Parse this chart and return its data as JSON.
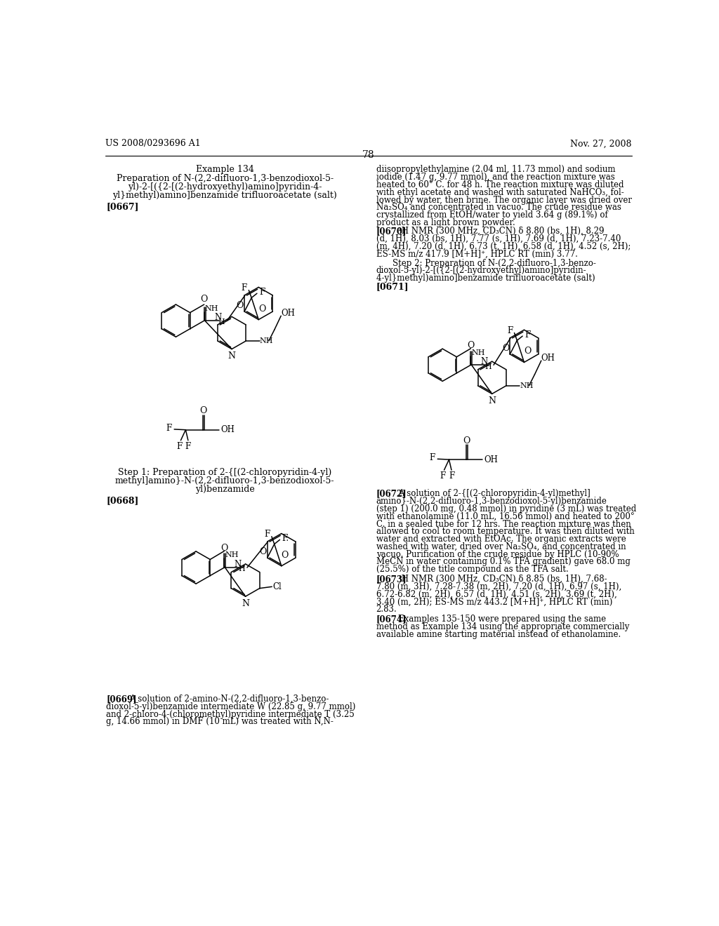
{
  "bg_color": "#ffffff",
  "header_left": "US 2008/0293696 A1",
  "header_right": "Nov. 27, 2008",
  "page_number": "78",
  "title_col1_line1": "Example 134",
  "title_col1_line2": "Preparation of N-(2,2-difluoro-1,3-benzodioxol-5-",
  "title_col1_line3": "yl)-2-[({2-[(2-hydroxyethyl)amino]pyridin-4-",
  "title_col1_line4": "yl}methyl)amino]benzamide trifluoroacetate (salt)",
  "tag_0667": "[0667]",
  "tag_0668": "[0668]",
  "tag_0669": "[0669]",
  "tag_0670": "[0670]",
  "tag_0671": "[0671]",
  "tag_0672": "[0672]",
  "tag_0673": "[0673]",
  "tag_0674": "[0674]",
  "col2_text_top_line1": "diisopropylethylamine (2.04 ml, 11.73 mmol) and sodium",
  "col2_text_top_line2": "iodide (1.47 g, 9.77 mmol), and the reaction mixture was",
  "col2_text_top_line3": "heated to 60° C. for 48 h. The reaction mixture was diluted",
  "col2_text_top_line4": "with ethyl acetate and washed with saturated NaHCO₃, fol-",
  "col2_text_top_line5": "lowed by water, then brine. The organic layer was dried over",
  "col2_text_top_line6": "Na₂SO₄ and concentrated in vacuo. The crude residue was",
  "col2_text_top_line7": "crystallized from EtOH/water to yield 3.64 g (89.1%) of",
  "col2_text_top_line8": "product as a light brown powder.",
  "text_0670_line1": "¹H NMR (300 MHz, CD₃CN) δ 8.80 (bs, 1H), 8.29",
  "text_0670_line2": "(d, 1H), 8.03 (bs, 1H), 7.77 (s, 1H), 7.69 (d, 1H), 7.23-7.40",
  "text_0670_line3": "(m, 4H), 7.20 (d, 1H), 6.73 (t, 1H), 6.58 (d, 1H), 4.52 (s, 2H);",
  "text_0670_line4": "ES-MS m/z 417.9 [M+H]⁺, HPLC RT (min) 3.77.",
  "step2_line1": "Step 2: Preparation of N-(2,2-difluoro-1,3-benzo-",
  "step2_line2": "dioxol-5-yl)-2-[({2-[(2-hydroxyethyl)amino]pyridin-",
  "step2_line3": "4-yl}methyl)amino]benzamide trifluoroacetate (salt)",
  "step1_line1": "Step 1: Preparation of 2-{[(2-chloropyridin-4-yl)",
  "step1_line2": "methyl]amino}-N-(2,2-difluoro-1,3-benzodioxol-5-",
  "step1_line3": "yl)benzamide",
  "text_0669_line1": "[0669]   A solution of 2-amino-N-(2,2-difluoro-1,3-benzo-",
  "text_0669_line2": "dioxol-5-yl)benzamide intermediate W (22.85 g, 9.77 mmol)",
  "text_0669_line3": "and 2-chloro-4-(chloromethyl)pyridine intermediate T (3.25",
  "text_0669_line4": "g, 14.66 mmol) in DMF (10 mL) was treated with N,N-",
  "text_0672_line1": "A solution of 2-{[(2-chloropyridin-4-yl)methyl]",
  "text_0672_line2": "amino}-N-(2,2-difluoro-1,3-benzodioxol-5-yl)benzamide",
  "text_0672_line3": "(step 1) (200.0 mg, 0.48 mmol) in pyridine (3 mL) was treated",
  "text_0672_line4": "with ethanolamine (11.0 mL, 16.56 mmol) and heated to 200°",
  "text_0672_line5": "C. in a sealed tube for 12 hrs. The reaction mixture was then",
  "text_0672_line6": "allowed to cool to room temperature. It was then diluted with",
  "text_0672_line7": "water and extracted with EtOAc. The organic extracts were",
  "text_0672_line8": "washed with water, dried over Na₂SO₄, and concentrated in",
  "text_0672_line9": "vacuo. Purification of the crude residue by HPLC (10-90%",
  "text_0672_line10": "MeCN in water containing 0.1% TFA gradient) gave 68.0 mg",
  "text_0672_line11": "(25.5%) of the title compound as the TFA salt.",
  "text_0673_line1": "¹H NMR (300 MHz, CD₃CN) δ 8.85 (bs, 1H), 7.68-",
  "text_0673_line2": "7.80 (m, 3H), 7.28-7.38 (m, 2H), 7.20 (d, 1H), 6.97 (s, 1H),",
  "text_0673_line3": "6.72-6.82 (m, 2H), 6.57 (d, 1H), 4.51 (s, 2H), 3.69 (t, 2H),",
  "text_0673_line4": "3.40 (m, 2H); ES-MS m/z 443.2 [M+H]⁺, HPLC RT (min)",
  "text_0673_line5": "2.83.",
  "text_0674_line1": "Examples 135-150 were prepared using the same",
  "text_0674_line2": "method as Example 134 using the appropriate commercially",
  "text_0674_line3": "available amine starting material instead of ethanolamine."
}
